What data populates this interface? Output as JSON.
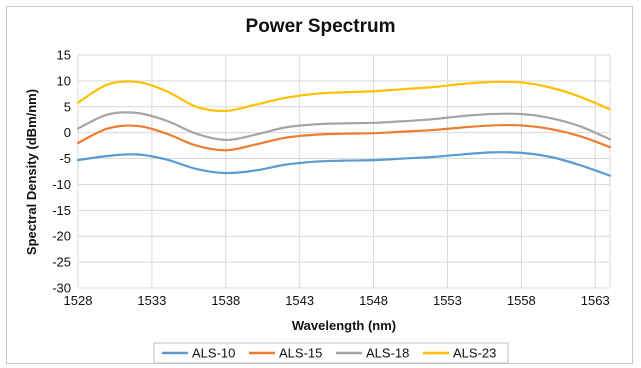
{
  "chart_data": {
    "type": "line",
    "title": "Power Spectrum",
    "xlabel": "Wavelength (nm)",
    "ylabel": "Spectral Density (dBm/nm)",
    "xlim": [
      1528,
      1564
    ],
    "ylim": [
      -30,
      15
    ],
    "xticks": [
      1528,
      1533,
      1538,
      1543,
      1548,
      1553,
      1558,
      1563
    ],
    "yticks": [
      15,
      10,
      5,
      0,
      -5,
      -10,
      -15,
      -20,
      -25,
      -30
    ],
    "grid": true,
    "legend_position": "bottom",
    "series": [
      {
        "name": "ALS-10",
        "color": "#5b9bd5",
        "x": [
          1528,
          1530,
          1532,
          1534,
          1536,
          1538,
          1540,
          1542,
          1544,
          1546,
          1548,
          1550,
          1552,
          1554,
          1556,
          1558,
          1560,
          1562,
          1564
        ],
        "y": [
          -5.3,
          -4.5,
          -4.2,
          -5.2,
          -7.0,
          -7.8,
          -7.3,
          -6.2,
          -5.6,
          -5.4,
          -5.3,
          -5.0,
          -4.7,
          -4.2,
          -3.8,
          -3.9,
          -4.7,
          -6.3,
          -8.3
        ]
      },
      {
        "name": "ALS-15",
        "color": "#ed7d31",
        "x": [
          1528,
          1530,
          1532,
          1534,
          1536,
          1538,
          1540,
          1542,
          1544,
          1546,
          1548,
          1550,
          1552,
          1554,
          1556,
          1558,
          1560,
          1562,
          1564
        ],
        "y": [
          -2.0,
          0.8,
          1.3,
          -0.2,
          -2.5,
          -3.4,
          -2.3,
          -1.0,
          -0.4,
          -0.2,
          -0.1,
          0.2,
          0.5,
          1.0,
          1.4,
          1.4,
          0.7,
          -0.7,
          -2.8
        ]
      },
      {
        "name": "ALS-18",
        "color": "#a5a5a5",
        "x": [
          1528,
          1530,
          1532,
          1534,
          1536,
          1538,
          1540,
          1542,
          1544,
          1546,
          1548,
          1550,
          1552,
          1554,
          1556,
          1558,
          1560,
          1562,
          1564
        ],
        "y": [
          0.8,
          3.5,
          3.8,
          2.3,
          -0.2,
          -1.4,
          -0.4,
          1.0,
          1.6,
          1.8,
          1.9,
          2.2,
          2.6,
          3.2,
          3.6,
          3.6,
          2.8,
          1.2,
          -1.3
        ]
      },
      {
        "name": "ALS-23",
        "color": "#ffc000",
        "x": [
          1528,
          1530,
          1532,
          1534,
          1536,
          1538,
          1540,
          1542,
          1544,
          1546,
          1548,
          1550,
          1552,
          1554,
          1556,
          1558,
          1560,
          1562,
          1564
        ],
        "y": [
          5.8,
          9.3,
          9.8,
          8.0,
          5.0,
          4.2,
          5.4,
          6.7,
          7.5,
          7.8,
          8.0,
          8.4,
          8.8,
          9.4,
          9.8,
          9.7,
          8.7,
          6.9,
          4.5
        ]
      }
    ]
  }
}
